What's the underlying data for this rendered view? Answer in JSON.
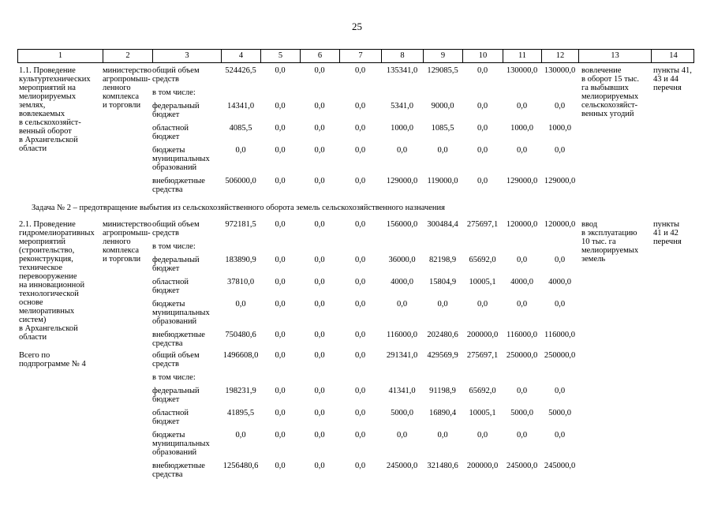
{
  "page": {
    "number": "25"
  },
  "table": {
    "column_numbers": [
      "1",
      "2",
      "3",
      "4",
      "5",
      "6",
      "7",
      "8",
      "9",
      "10",
      "11",
      "12",
      "13",
      "14"
    ],
    "sections": [
      {
        "type": "block",
        "activity": "1.1. Проведение\nкультуртехнических\nмероприятий на\nмелиорируемых\nземлях,\nвовлекаемых\nв сельскохозяйст-\nвенный оборот\nв Архангельской\nобласти",
        "executor": "министерство\nагропромыш-\nленного\nкомплекса\nи торговли",
        "rows": [
          {
            "label": "общий объем\nсредств",
            "values": [
              "524426,5",
              "0,0",
              "0,0",
              "0,0",
              "135341,0",
              "129085,5",
              "0,0",
              "130000,0",
              "130000,0"
            ]
          },
          {
            "label": "в том числе:",
            "values": []
          },
          {
            "label": "федеральный\nбюджет",
            "values": [
              "14341,0",
              "0,0",
              "0,0",
              "0,0",
              "5341,0",
              "9000,0",
              "0,0",
              "0,0",
              "0,0"
            ]
          },
          {
            "label": "областной\nбюджет",
            "values": [
              "4085,5",
              "0,0",
              "0,0",
              "0,0",
              "1000,0",
              "1085,5",
              "0,0",
              "1000,0",
              "1000,0"
            ]
          },
          {
            "label": "бюджеты\nмуниципальных\nобразований",
            "values": [
              "0,0",
              "0,0",
              "0,0",
              "0,0",
              "0,0",
              "0,0",
              "0,0",
              "0,0",
              "0,0"
            ]
          },
          {
            "label": "внебюджетные\nсредства",
            "values": [
              "506000,0",
              "0,0",
              "0,0",
              "0,0",
              "129000,0",
              "119000,0",
              "0,0",
              "129000,0",
              "129000,0"
            ]
          }
        ],
        "expected_result": "вовлечение\nв оборот 15 тыс.\nга выбывших\nмелиорируемых\nсельскохозяйст-\nвенных угодий",
        "reference": "пункты 41,\n43 и 44\nперечня"
      },
      {
        "type": "note",
        "text": "Задача № 2 – предотвращение выбытия из сельскохозяйственного оборота земель сельскохозяйственного назначения"
      },
      {
        "type": "block",
        "activity": "2.1. Проведение\nгидромелиоративных\nмероприятий\n(строительство,\nреконструкция,\nтехническое\nперевооружение\nна инновационной\nтехнологической\nоснове\nмелиоративных\nсистем)\nв Архангельской\nобласти",
        "executor": "министерство\nагропромыш-\nленного\nкомплекса\nи торговли",
        "rows": [
          {
            "label": "общий объем\nсредств",
            "values": [
              "972181,5",
              "0,0",
              "0,0",
              "0,0",
              "156000,0",
              "300484,4",
              "275697,1",
              "120000,0",
              "120000,0"
            ]
          },
          {
            "label": "в том числе:",
            "values": []
          },
          {
            "label": "федеральный\nбюджет",
            "values": [
              "183890,9",
              "0,0",
              "0,0",
              "0,0",
              "36000,0",
              "82198,9",
              "65692,0",
              "0,0",
              "0,0"
            ]
          },
          {
            "label": "областной\nбюджет",
            "values": [
              "37810,0",
              "0,0",
              "0,0",
              "0,0",
              "4000,0",
              "15804,9",
              "10005,1",
              "4000,0",
              "4000,0"
            ]
          },
          {
            "label": "бюджеты\nмуниципальных\nобразований",
            "values": [
              "0,0",
              "0,0",
              "0,0",
              "0,0",
              "0,0",
              "0,0",
              "0,0",
              "0,0",
              "0,0"
            ]
          },
          {
            "label": "внебюджетные\nсредства",
            "values": [
              "750480,6",
              "0,0",
              "0,0",
              "0,0",
              "116000,0",
              "202480,6",
              "200000,0",
              "116000,0",
              "116000,0"
            ]
          }
        ],
        "expected_result": "ввод\nв эксплуатацию\n10 тыс. га\nмелиорируемых\nземель",
        "reference": "пункты\n41 и 42\nперечня"
      },
      {
        "type": "block",
        "activity": "Всего по\nподпрограмме № 4",
        "rows": [
          {
            "label": "общий объем\nсредств",
            "values": [
              "1496608,0",
              "0,0",
              "0,0",
              "0,0",
              "291341,0",
              "429569,9",
              "275697,1",
              "250000,0",
              "250000,0"
            ]
          },
          {
            "label": "в том числе:",
            "values": []
          },
          {
            "label": "федеральный\nбюджет",
            "values": [
              "198231,9",
              "0,0",
              "0,0",
              "0,0",
              "41341,0",
              "91198,9",
              "65692,0",
              "0,0",
              "0,0"
            ]
          },
          {
            "label": "областной\nбюджет",
            "values": [
              "41895,5",
              "0,0",
              "0,0",
              "0,0",
              "5000,0",
              "16890,4",
              "10005,1",
              "5000,0",
              "5000,0"
            ]
          },
          {
            "label": "бюджеты\nмуниципальных\nобразований",
            "values": [
              "0,0",
              "0,0",
              "0,0",
              "0,0",
              "0,0",
              "0,0",
              "0,0",
              "0,0",
              "0,0"
            ]
          },
          {
            "label": "внебюджетные\nсредства",
            "values": [
              "1256480,6",
              "0,0",
              "0,0",
              "0,0",
              "245000,0",
              "321480,6",
              "200000,0",
              "245000,0",
              "245000,0"
            ]
          }
        ]
      }
    ]
  }
}
